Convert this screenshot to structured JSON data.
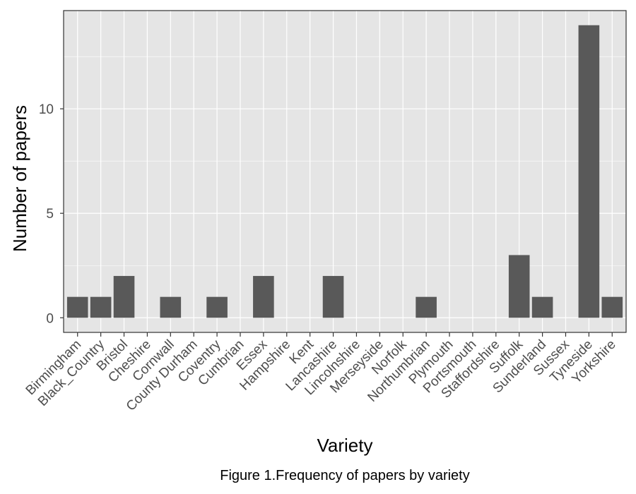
{
  "chart_data": {
    "type": "bar",
    "categories": [
      "Birmingham",
      "Black_Country",
      "Bristol",
      "Cheshire",
      "Cornwall",
      "County Durham",
      "Coventry",
      "Cumbrian",
      "Essex",
      "Hampshire",
      "Kent",
      "Lancashire",
      "Lincolnshire",
      "Merseyside",
      "Norfolk",
      "Northumbrian",
      "Plymouth",
      "Portsmouth",
      "Staffordshire",
      "Suffolk",
      "Sunderland",
      "Sussex",
      "Tyneside",
      "Yorkshire"
    ],
    "values": [
      1,
      1,
      2,
      0,
      1,
      0,
      1,
      0,
      2,
      0,
      0,
      2,
      0,
      0,
      0,
      1,
      0,
      0,
      0,
      3,
      1,
      0,
      14,
      1
    ],
    "xlabel": "Variety",
    "ylabel": "Number of papers",
    "caption": "Figure 1.Frequency of papers by variety",
    "yticks": [
      "0",
      "5",
      "10"
    ],
    "ylim": [
      -0.7,
      14.7
    ],
    "grid": true,
    "colors": {
      "bar": "#595959",
      "panel": "#e5e5e5",
      "grid": "#ffffff",
      "tick_text": "#4d4d4d",
      "title_text": "#000000"
    }
  }
}
